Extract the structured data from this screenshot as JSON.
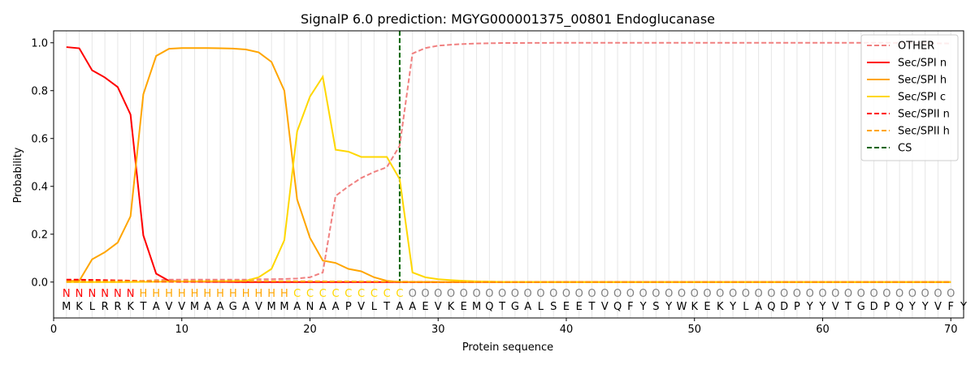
{
  "chart_data": {
    "type": "line",
    "title": "SignalP 6.0 prediction: MGYG000001375_00801 Endoglucanase",
    "xlabel": "Protein sequence",
    "ylabel": "Probability",
    "xlim": [
      0,
      71
    ],
    "ylim": [
      -0.15,
      1.05
    ],
    "x_ticks": [
      0,
      10,
      20,
      30,
      40,
      50,
      60,
      70
    ],
    "y_ticks": [
      0.0,
      0.2,
      0.4,
      0.6,
      0.8,
      1.0
    ],
    "x_tick_labels": [
      "0",
      "10",
      "20",
      "30",
      "40",
      "50",
      "60",
      "70"
    ],
    "y_tick_labels": [
      "0.0",
      "0.2",
      "0.4",
      "0.6",
      "0.8",
      "1.0"
    ],
    "grid": "vertical lines at each residue",
    "legend_position": "top-right",
    "sequence": [
      "M",
      "K",
      "L",
      "R",
      "R",
      "K",
      "T",
      "A",
      "V",
      "V",
      "M",
      "A",
      "A",
      "G",
      "A",
      "V",
      "M",
      "M",
      "A",
      "N",
      "A",
      "A",
      "P",
      "V",
      "L",
      "T",
      "A",
      "A",
      "E",
      "V",
      "K",
      "E",
      "M",
      "Q",
      "T",
      "G",
      "A",
      "L",
      "S",
      "E",
      "E",
      "T",
      "V",
      "Q",
      "F",
      "Y",
      "S",
      "Y",
      "W",
      "K",
      "E",
      "K",
      "Y",
      "L",
      "A",
      "Q",
      "D",
      "P",
      "Y",
      "Y",
      "V",
      "T",
      "G",
      "D",
      "P",
      "Q",
      "Y",
      "Y",
      "V",
      "F",
      "Y"
    ],
    "annotation": [
      "N",
      "N",
      "N",
      "N",
      "N",
      "N",
      "H",
      "H",
      "H",
      "H",
      "H",
      "H",
      "H",
      "H",
      "H",
      "H",
      "H",
      "H",
      "C",
      "C",
      "C",
      "C",
      "C",
      "C",
      "C",
      "C",
      "C",
      "O",
      "O",
      "O",
      "O",
      "O",
      "O",
      "O",
      "O",
      "O",
      "O",
      "O",
      "O",
      "O",
      "O",
      "O",
      "O",
      "O",
      "O",
      "O",
      "O",
      "O",
      "O",
      "O",
      "O",
      "O",
      "O",
      "O",
      "O",
      "O",
      "O",
      "O",
      "O",
      "O",
      "O",
      "O",
      "O",
      "O",
      "O",
      "O",
      "O",
      "O",
      "O",
      "O"
    ],
    "annotation_colors": {
      "N": "#ff0000",
      "H": "#ffa500",
      "C": "#ffd700",
      "O": "#808080"
    },
    "cleavage_site": 27,
    "series": [
      {
        "name": "OTHER",
        "color": "#f08080",
        "dash": "dashed",
        "x": [
          1,
          2,
          3,
          4,
          5,
          6,
          7,
          8,
          9,
          10,
          11,
          12,
          13,
          14,
          15,
          16,
          17,
          18,
          19,
          20,
          21,
          22,
          23,
          24,
          25,
          26,
          27,
          28,
          29,
          30,
          31,
          32,
          33,
          34,
          35,
          40,
          50,
          60,
          65,
          70
        ],
        "values": [
          0.0,
          0.0,
          0.0,
          0.0,
          0.0,
          0.0,
          0.005,
          0.008,
          0.01,
          0.01,
          0.01,
          0.01,
          0.01,
          0.01,
          0.01,
          0.012,
          0.012,
          0.013,
          0.015,
          0.02,
          0.04,
          0.36,
          0.4,
          0.435,
          0.46,
          0.48,
          0.57,
          0.955,
          0.978,
          0.988,
          0.992,
          0.995,
          0.997,
          0.998,
          0.999,
          1.0,
          1.0,
          1.0,
          1.0,
          0.997
        ]
      },
      {
        "name": "Sec/SPI n",
        "color": "#ff0000",
        "dash": "solid",
        "x": [
          1,
          2,
          3,
          4,
          5,
          6,
          7,
          8,
          9,
          10,
          15,
          20,
          25,
          30,
          40,
          50,
          60,
          70
        ],
        "values": [
          0.982,
          0.977,
          0.885,
          0.855,
          0.815,
          0.7,
          0.195,
          0.035,
          0.005,
          0.002,
          0.0,
          0.0,
          0.0,
          0.0,
          0.0,
          0.0,
          0.0,
          0.0
        ]
      },
      {
        "name": "Sec/SPI h",
        "color": "#ffa500",
        "dash": "solid",
        "x": [
          1,
          2,
          3,
          4,
          5,
          6,
          7,
          8,
          9,
          10,
          11,
          12,
          13,
          14,
          15,
          16,
          17,
          18,
          19,
          20,
          21,
          22,
          23,
          24,
          25,
          26,
          27,
          28,
          29,
          30,
          40,
          50,
          60,
          70
        ],
        "values": [
          0.005,
          0.005,
          0.095,
          0.125,
          0.165,
          0.275,
          0.785,
          0.945,
          0.975,
          0.978,
          0.978,
          0.978,
          0.977,
          0.976,
          0.972,
          0.96,
          0.92,
          0.8,
          0.345,
          0.185,
          0.09,
          0.08,
          0.055,
          0.045,
          0.02,
          0.005,
          0.0,
          0.0,
          0.0,
          0.0,
          0.0,
          0.0,
          0.0,
          0.0
        ]
      },
      {
        "name": "Sec/SPI c",
        "color": "#ffd700",
        "dash": "solid",
        "x": [
          1,
          5,
          10,
          15,
          16,
          17,
          18,
          19,
          20,
          21,
          22,
          23,
          24,
          25,
          26,
          27,
          28,
          29,
          30,
          31,
          32,
          33,
          35,
          40,
          50,
          60,
          70
        ],
        "values": [
          0.0,
          0.0,
          0.002,
          0.005,
          0.02,
          0.055,
          0.175,
          0.63,
          0.775,
          0.858,
          0.553,
          0.545,
          0.523,
          0.523,
          0.523,
          0.43,
          0.04,
          0.02,
          0.012,
          0.008,
          0.005,
          0.003,
          0.001,
          0.0,
          0.0,
          0.0,
          0.0
        ]
      },
      {
        "name": "Sec/SPII n",
        "color": "#ff0000",
        "dash": "dashed",
        "x": [
          1,
          2,
          3,
          4,
          5,
          6,
          7,
          8,
          10,
          15,
          20,
          25,
          30,
          40,
          50,
          60,
          70
        ],
        "values": [
          0.01,
          0.01,
          0.009,
          0.008,
          0.007,
          0.006,
          0.004,
          0.002,
          0.001,
          0.0,
          0.0,
          0.0,
          0.0,
          0.0,
          0.0,
          0.0,
          0.0
        ]
      },
      {
        "name": "Sec/SPII h",
        "color": "#ffa500",
        "dash": "dashed",
        "x": [
          1,
          2,
          3,
          4,
          5,
          6,
          7,
          8,
          10,
          15,
          20,
          25,
          30,
          40,
          50,
          60,
          70
        ],
        "values": [
          0.002,
          0.002,
          0.003,
          0.003,
          0.004,
          0.004,
          0.004,
          0.004,
          0.004,
          0.004,
          0.003,
          0.002,
          0.001,
          0.0,
          0.0,
          0.0,
          0.0
        ]
      }
    ],
    "legend": [
      {
        "label": "OTHER",
        "color": "#f08080",
        "dash": "dashed"
      },
      {
        "label": "Sec/SPI n",
        "color": "#ff0000",
        "dash": "solid"
      },
      {
        "label": "Sec/SPI h",
        "color": "#ffa500",
        "dash": "solid"
      },
      {
        "label": "Sec/SPI c",
        "color": "#ffd700",
        "dash": "solid"
      },
      {
        "label": "Sec/SPII n",
        "color": "#ff0000",
        "dash": "dashed"
      },
      {
        "label": "Sec/SPII h",
        "color": "#ffa500",
        "dash": "dashed"
      },
      {
        "label": "CS",
        "color": "#006400",
        "dash": "dashed"
      }
    ]
  }
}
